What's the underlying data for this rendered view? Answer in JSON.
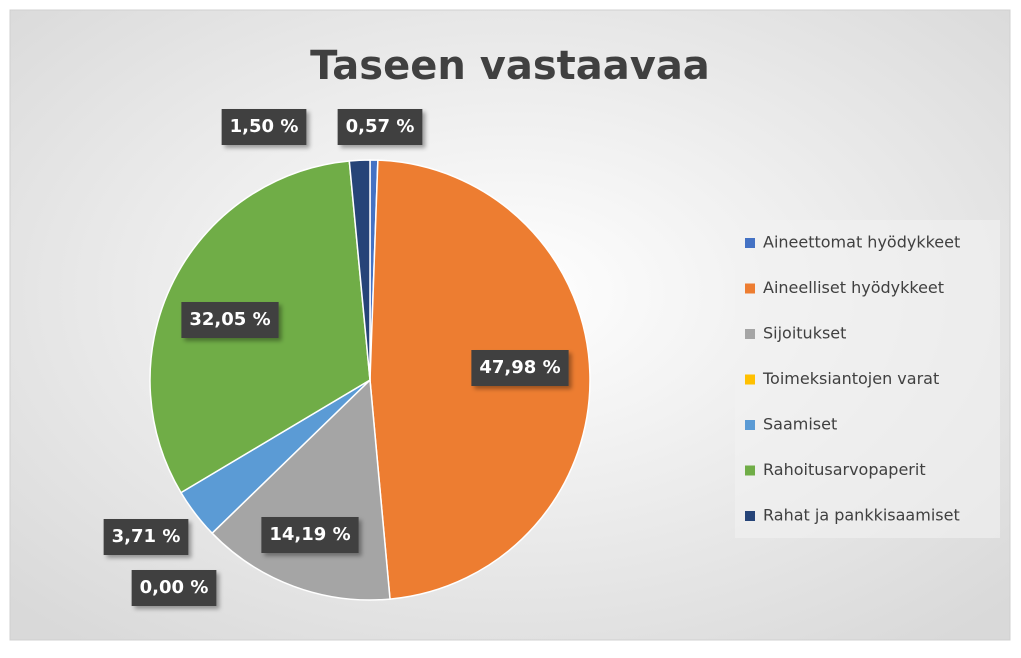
{
  "chart_data": {
    "type": "pie",
    "title": "Taseen vastaavaa",
    "categories": [
      "Aineettomat hyödykkeet",
      "Aineelliset hyödykkeet",
      "Sijoitukset",
      "Toimeksiantojen varat",
      "Saamiset",
      "Rahoitusarvopaperit",
      "Rahat ja pankkisaamiset"
    ],
    "values": [
      0.57,
      47.98,
      14.19,
      0.0,
      3.71,
      32.05,
      1.5
    ],
    "value_labels": [
      "0,57 %",
      "47,98 %",
      "14,19 %",
      "0,00 %",
      "3,71 %",
      "32,05 %",
      "1,50 %"
    ],
    "colors": [
      "#4472c4",
      "#ed7d31",
      "#a5a5a5",
      "#ffc000",
      "#5b9bd5",
      "#70ad47",
      "#264478"
    ],
    "legend": "right"
  }
}
